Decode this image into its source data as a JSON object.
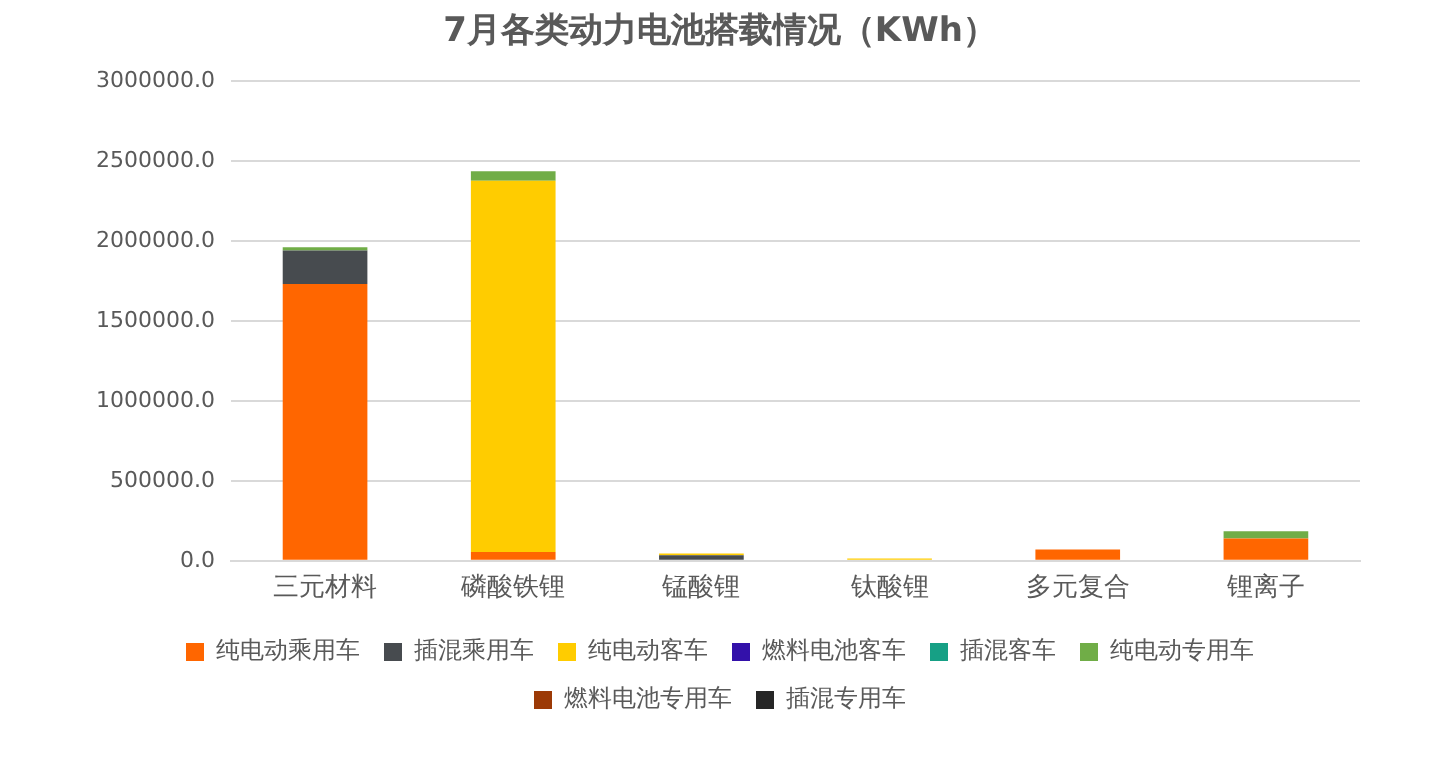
{
  "chart_data": {
    "type": "bar",
    "title": "7月各类动力电池搭载情况（KWh）",
    "stacked": true,
    "categories": [
      "三元材料",
      "磷酸铁锂",
      "锰酸锂",
      "钛酸锂",
      "多元复合",
      "锂离子"
    ],
    "series": [
      {
        "name": "纯电动乘用车",
        "color": "#ff6600",
        "values": [
          1730000,
          55000,
          0,
          0,
          70000,
          140000
        ]
      },
      {
        "name": "插混乘用车",
        "color": "#474b4f",
        "values": [
          210000,
          0,
          35000,
          0,
          0,
          0
        ]
      },
      {
        "name": "纯电动客车",
        "color": "#ffcc00",
        "values": [
          0,
          2320000,
          10000,
          15000,
          0,
          0
        ]
      },
      {
        "name": "燃料电池客车",
        "color": "#3311aa",
        "values": [
          0,
          0,
          0,
          0,
          0,
          0
        ]
      },
      {
        "name": "插混客车",
        "color": "#16a085",
        "values": [
          0,
          0,
          0,
          0,
          0,
          0
        ]
      },
      {
        "name": "纯电动专用车",
        "color": "#70ad47",
        "values": [
          20000,
          60000,
          0,
          0,
          0,
          45000
        ]
      },
      {
        "name": "燃料电池专用车",
        "color": "#9c3a06",
        "values": [
          0,
          0,
          0,
          0,
          0,
          0
        ]
      },
      {
        "name": "插混专用车",
        "color": "#262626",
        "values": [
          0,
          0,
          0,
          0,
          0,
          0
        ]
      }
    ],
    "ylim": [
      0,
      3000000
    ],
    "yticks": [
      {
        "value": 0,
        "label": "0.0"
      },
      {
        "value": 500000,
        "label": "500000.0"
      },
      {
        "value": 1000000,
        "label": "1000000.0"
      },
      {
        "value": 1500000,
        "label": "1500000.0"
      },
      {
        "value": 2000000,
        "label": "2000000.0"
      },
      {
        "value": 2500000,
        "label": "2500000.0"
      },
      {
        "value": 3000000,
        "label": "3000000.0"
      }
    ],
    "grid": "y",
    "legend": "bottom"
  }
}
